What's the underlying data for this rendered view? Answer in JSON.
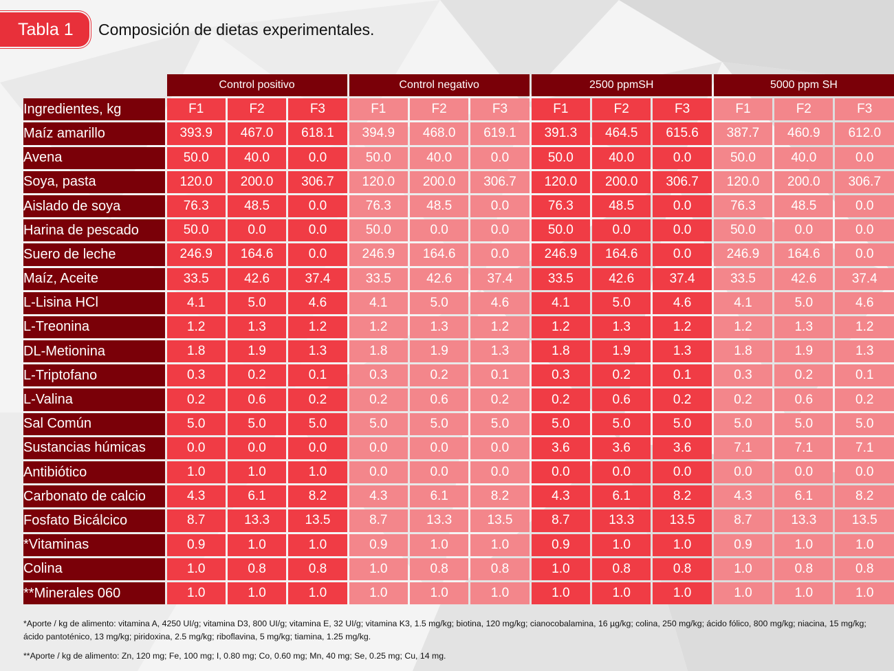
{
  "header": {
    "badge": "Tabla 1",
    "title": "Composición de dietas experimentales."
  },
  "colors": {
    "dark": "#7a0008",
    "red": "#f03c45",
    "pink": "#f3868b",
    "badge": "#e8303a"
  },
  "table": {
    "groups": [
      "Control positivo",
      "Control negativo",
      "2500 ppmSH",
      "5000 ppm SH"
    ],
    "first_header": "Ingredientes, kg",
    "subheaders": [
      "F1",
      "F2",
      "F3"
    ],
    "rows": [
      {
        "label": "Maíz amarillo",
        "values": [
          "393.9",
          "467.0",
          "618.1",
          "394.9",
          "468.0",
          "619.1",
          "391.3",
          "464.5",
          "615.6",
          "387.7",
          "460.9",
          "612.0"
        ]
      },
      {
        "label": "Avena",
        "values": [
          "50.0",
          "40.0",
          "0.0",
          "50.0",
          "40.0",
          "0.0",
          "50.0",
          "40.0",
          "0.0",
          "50.0",
          "40.0",
          "0.0"
        ]
      },
      {
        "label": "Soya, pasta",
        "values": [
          "120.0",
          "200.0",
          "306.7",
          "120.0",
          "200.0",
          "306.7",
          "120.0",
          "200.0",
          "306.7",
          "120.0",
          "200.0",
          "306.7"
        ]
      },
      {
        "label": "Aislado de soya",
        "values": [
          "76.3",
          "48.5",
          "0.0",
          "76.3",
          "48.5",
          "0.0",
          "76.3",
          "48.5",
          "0.0",
          "76.3",
          "48.5",
          "0.0"
        ]
      },
      {
        "label": "Harina de pescado",
        "values": [
          "50.0",
          "0.0",
          "0.0",
          "50.0",
          "0.0",
          "0.0",
          "50.0",
          "0.0",
          "0.0",
          "50.0",
          "0.0",
          "0.0"
        ]
      },
      {
        "label": "Suero de leche",
        "values": [
          "246.9",
          "164.6",
          "0.0",
          "246.9",
          "164.6",
          "0.0",
          "246.9",
          "164.6",
          "0.0",
          "246.9",
          "164.6",
          "0.0"
        ]
      },
      {
        "label": "Maíz, Aceite",
        "values": [
          "33.5",
          "42.6",
          "37.4",
          "33.5",
          "42.6",
          "37.4",
          "33.5",
          "42.6",
          "37.4",
          "33.5",
          "42.6",
          "37.4"
        ]
      },
      {
        "label": "L-Lisina HCl",
        "values": [
          "4.1",
          "5.0",
          "4.6",
          "4.1",
          "5.0",
          "4.6",
          "4.1",
          "5.0",
          "4.6",
          "4.1",
          "5.0",
          "4.6"
        ]
      },
      {
        "label": "L-Treonina",
        "values": [
          "1.2",
          "1.3",
          "1.2",
          "1.2",
          "1.3",
          "1.2",
          "1.2",
          "1.3",
          "1.2",
          "1.2",
          "1.3",
          "1.2"
        ]
      },
      {
        "label": "DL-Metionina",
        "values": [
          "1.8",
          "1.9",
          "1.3",
          "1.8",
          "1.9",
          "1.3",
          "1.8",
          "1.9",
          "1.3",
          "1.8",
          "1.9",
          "1.3"
        ]
      },
      {
        "label": "L-Triptofano",
        "values": [
          "0.3",
          "0.2",
          "0.1",
          "0.3",
          "0.2",
          "0.1",
          "0.3",
          "0.2",
          "0.1",
          "0.3",
          "0.2",
          "0.1"
        ]
      },
      {
        "label": "L-Valina",
        "values": [
          "0.2",
          "0.6",
          "0.2",
          "0.2",
          "0.6",
          "0.2",
          "0.2",
          "0.6",
          "0.2",
          "0.2",
          "0.6",
          "0.2"
        ]
      },
      {
        "label": "Sal Común",
        "values": [
          "5.0",
          "5.0",
          "5.0",
          "5.0",
          "5.0",
          "5.0",
          "5.0",
          "5.0",
          "5.0",
          "5.0",
          "5.0",
          "5.0"
        ]
      },
      {
        "label": "Sustancias húmicas",
        "values": [
          "0.0",
          "0.0",
          "0.0",
          "0.0",
          "0.0",
          "0.0",
          "3.6",
          "3.6",
          "3.6",
          "7.1",
          "7.1",
          "7.1"
        ]
      },
      {
        "label": "Antibiótico",
        "values": [
          "1.0",
          "1.0",
          "1.0",
          "0.0",
          "0.0",
          "0.0",
          "0.0",
          "0.0",
          "0.0",
          "0.0",
          "0.0",
          "0.0"
        ]
      },
      {
        "label": "Carbonato de calcio",
        "values": [
          "4.3",
          "6.1",
          "8.2",
          "4.3",
          "6.1",
          "8.2",
          "4.3",
          "6.1",
          "8.2",
          "4.3",
          "6.1",
          "8.2"
        ]
      },
      {
        "label": "Fosfato Bicálcico",
        "values": [
          "8.7",
          "13.3",
          "13.5",
          "8.7",
          "13.3",
          "13.5",
          "8.7",
          "13.3",
          "13.5",
          "8.7",
          "13.3",
          "13.5"
        ]
      },
      {
        "label": "*Vitaminas",
        "values": [
          "0.9",
          "1.0",
          "1.0",
          "0.9",
          "1.0",
          "1.0",
          "0.9",
          "1.0",
          "1.0",
          "0.9",
          "1.0",
          "1.0"
        ]
      },
      {
        "label": "Colina",
        "values": [
          "1.0",
          "0.8",
          "0.8",
          "1.0",
          "0.8",
          "0.8",
          "1.0",
          "0.8",
          "0.8",
          "1.0",
          "0.8",
          "0.8"
        ]
      },
      {
        "label": "**Minerales 060",
        "values": [
          "1.0",
          "1.0",
          "1.0",
          "1.0",
          "1.0",
          "1.0",
          "1.0",
          "1.0",
          "1.0",
          "1.0",
          "1.0",
          "1.0"
        ]
      }
    ]
  },
  "footnotes": [
    "*Aporte / kg de alimento: vitamina A, 4250 UI/g; vitamina D3, 800 UI/g; vitamina E, 32 UI/g; vitamina K3, 1.5 mg/kg; biotina, 120 mg/kg; cianocobalamina, 16 µg/kg; colina, 250 mg/kg; ácido fólico, 800 mg/kg; niacina, 15 mg/kg; ácido pantoténico, 13 mg/kg; piridoxina, 2.5 mg/kg; riboflavina, 5 mg/kg; tiamina, 1.25 mg/kg.",
    "**Aporte / kg de alimento: Zn, 120 mg; Fe, 100 mg; I, 0.80 mg; Co, 0.60 mg; Mn, 40 mg; Se, 0.25 mg; Cu, 14 mg."
  ]
}
